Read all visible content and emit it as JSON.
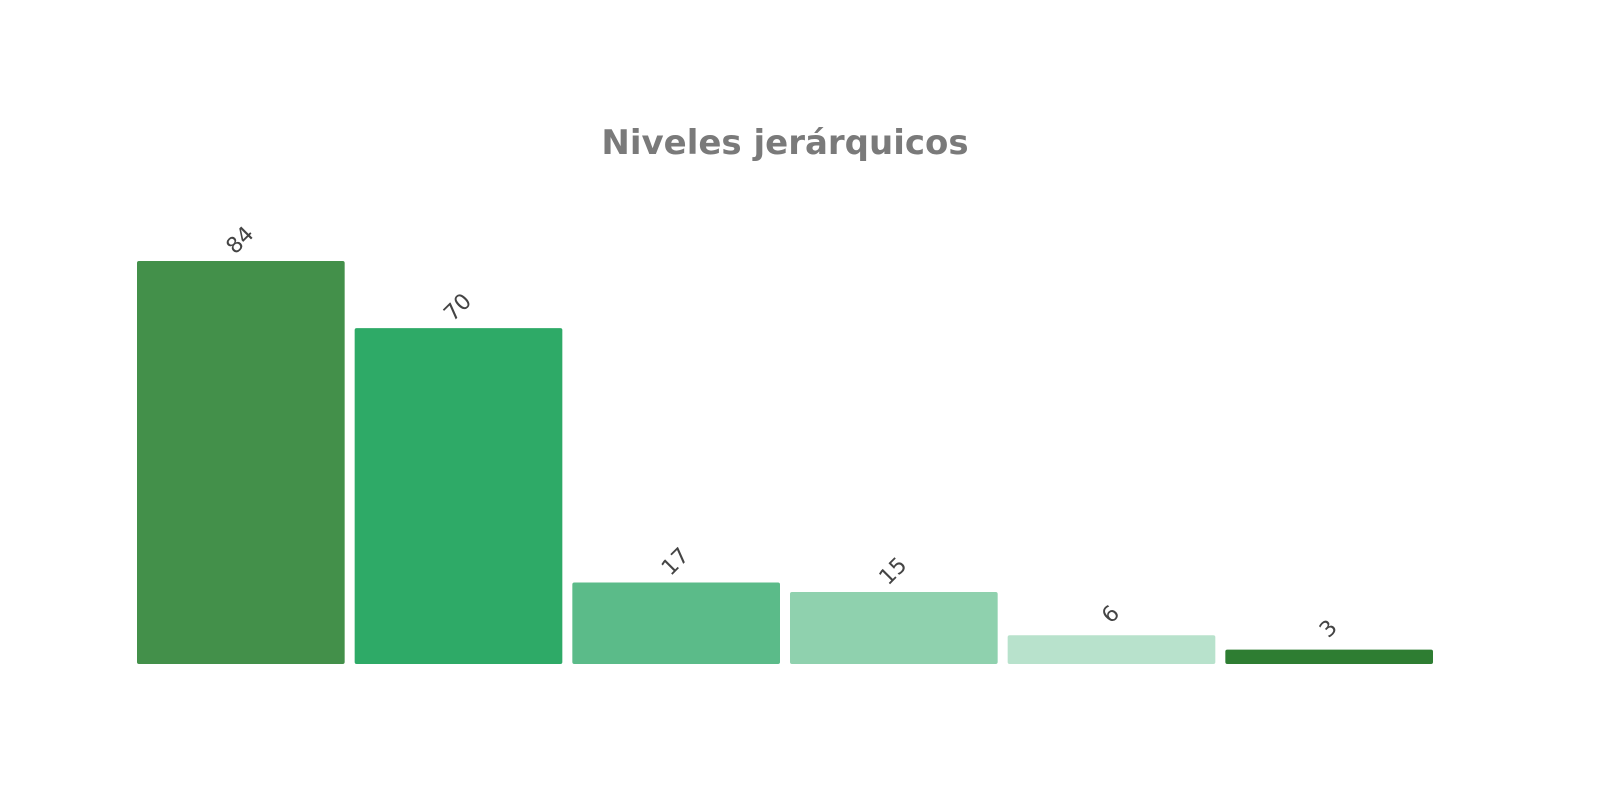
{
  "chart_data": {
    "type": "bar",
    "title": "Niveles jerárquicos",
    "categories": [
      null,
      null,
      null,
      null,
      null,
      null
    ],
    "values": [
      84,
      70,
      17,
      15,
      6,
      3
    ],
    "colors": [
      "#43904a",
      "#2eaa67",
      "#5bbb89",
      "#8fd1ae",
      "#b8e2cc",
      "#2e7d32"
    ]
  }
}
